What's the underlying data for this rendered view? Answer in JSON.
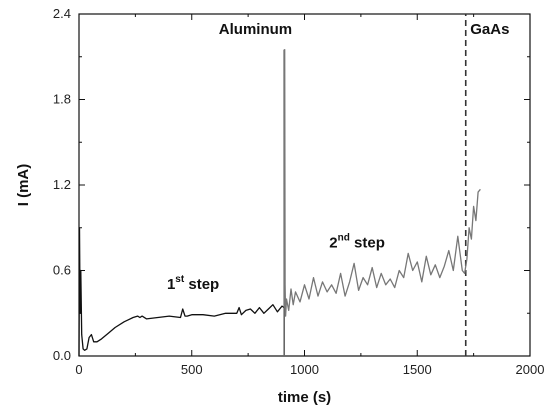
{
  "chart_data": {
    "type": "line",
    "title": "",
    "xlabel": "time (s)",
    "ylabel": "I (mA)",
    "xlim": [
      0,
      2000
    ],
    "ylim": [
      0,
      2.4
    ],
    "x_ticks": [
      0,
      500,
      1000,
      1500,
      2000
    ],
    "y_ticks": [
      0.0,
      0.6,
      1.2,
      1.8,
      2.4
    ],
    "x_tick_labels": [
      "0",
      "500",
      "1000",
      "1500",
      "2000"
    ],
    "y_tick_labels": [
      "0.0",
      "0.6",
      "1.2",
      "1.8",
      "2.4"
    ],
    "grid": false,
    "legend": "none",
    "series": [
      {
        "color": "#111111",
        "x": [
          0,
          2,
          5,
          8,
          12,
          18,
          25,
          35,
          45,
          55,
          65,
          80,
          100,
          130,
          160,
          200,
          240,
          260,
          270,
          280,
          300,
          350,
          400,
          450,
          460,
          470,
          480,
          500,
          550,
          600,
          650,
          700,
          710,
          720,
          740,
          760,
          780,
          800,
          820,
          840,
          860,
          880,
          900,
          910
        ],
        "y": [
          0.0,
          0.9,
          0.3,
          0.6,
          0.15,
          0.05,
          0.04,
          0.05,
          0.13,
          0.15,
          0.1,
          0.1,
          0.12,
          0.16,
          0.2,
          0.24,
          0.27,
          0.28,
          0.27,
          0.28,
          0.26,
          0.27,
          0.28,
          0.27,
          0.33,
          0.28,
          0.28,
          0.29,
          0.29,
          0.28,
          0.3,
          0.3,
          0.34,
          0.29,
          0.32,
          0.33,
          0.3,
          0.34,
          0.3,
          0.33,
          0.36,
          0.31,
          0.35,
          0.34
        ]
      },
      {
        "color": "#777777",
        "x": [
          910,
          912,
          914,
          916,
          920,
          930,
          940,
          950,
          960,
          980,
          1000,
          1020,
          1040,
          1060,
          1080,
          1100,
          1120,
          1140,
          1160,
          1180,
          1200,
          1220,
          1240,
          1260,
          1280,
          1300,
          1320,
          1340,
          1360,
          1380,
          1400,
          1420,
          1440,
          1460,
          1480,
          1500,
          1520,
          1540,
          1560,
          1580,
          1600,
          1620,
          1640,
          1660,
          1680,
          1700,
          1710,
          1720,
          1730,
          1740,
          1750,
          1760,
          1770,
          1780
        ],
        "y": [
          0.34,
          2.15,
          0.5,
          0.28,
          0.4,
          0.32,
          0.47,
          0.36,
          0.45,
          0.38,
          0.5,
          0.4,
          0.55,
          0.42,
          0.52,
          0.45,
          0.5,
          0.44,
          0.58,
          0.42,
          0.52,
          0.65,
          0.46,
          0.55,
          0.5,
          0.62,
          0.48,
          0.58,
          0.5,
          0.54,
          0.48,
          0.6,
          0.55,
          0.72,
          0.6,
          0.66,
          0.52,
          0.7,
          0.57,
          0.64,
          0.55,
          0.63,
          0.74,
          0.6,
          0.84,
          0.6,
          0.58,
          0.68,
          0.9,
          0.82,
          1.05,
          0.95,
          1.15,
          1.17
        ]
      }
    ],
    "vlines": [
      {
        "x": 910,
        "y_top": 2.15,
        "style": "solid",
        "color": "#666666"
      },
      {
        "x": 1715,
        "y_top": 2.4,
        "style": "dashed",
        "color": "#333333"
      }
    ],
    "annotations": [
      {
        "text": "1",
        "sup": "st",
        "rest": " step",
        "x": 390,
        "y": 0.47
      },
      {
        "text": "2",
        "sup": "nd",
        "rest": " step",
        "x": 1110,
        "y": 0.76
      },
      {
        "text": "Aluminum",
        "sup": "",
        "rest": "",
        "x": 620,
        "y": 2.26
      },
      {
        "text": "GaAs",
        "sup": "",
        "rest": "",
        "x": 1735,
        "y": 2.26
      }
    ]
  }
}
